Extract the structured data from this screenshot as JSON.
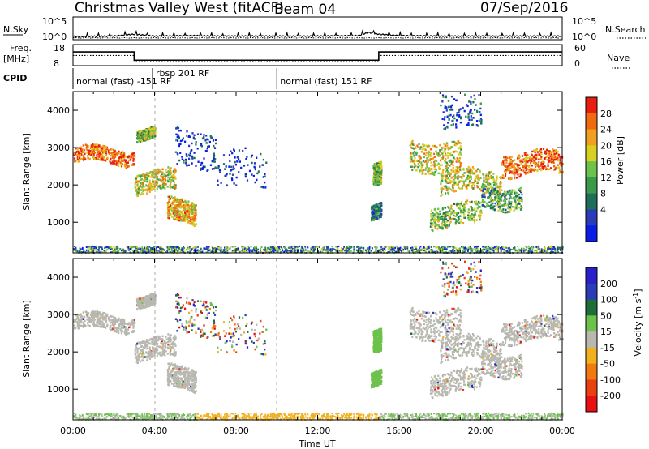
{
  "header": {
    "site_title": "Christmas Valley West (fitACF)",
    "beam": "Beam 04",
    "date": "07/Sep/2016"
  },
  "labels": {
    "nsky": "N.Sky",
    "nsky_ticks": [
      "10^5",
      "10^0"
    ],
    "nsearch": "N.Search",
    "nsearch_ticks": [
      "10^5",
      "10^0"
    ],
    "freq": "Freq.",
    "freq_unit": "[MHz]",
    "freq_ticks": [
      "18",
      "8"
    ],
    "nave": "Nave",
    "nave_ticks": [
      "60",
      "0"
    ],
    "cpid": "CPID"
  },
  "cpid_segments": [
    {
      "label": "normal (fast)  -151 RF",
      "start_hour": 0.0
    },
    {
      "label": "rbsp 201 RF",
      "start_hour": 3.9
    },
    {
      "label": "normal (fast) 151 RF",
      "start_hour": 10.0
    }
  ],
  "colors": {
    "power": [
      "#0a1ee6",
      "#2a3cb8",
      "#1e6e5a",
      "#3a9a4a",
      "#6cc24a",
      "#d8d020",
      "#f0a020",
      "#f06a10",
      "#e81e10"
    ],
    "velocity": [
      "#2a20c8",
      "#2a3cb8",
      "#1e6e3a",
      "#6cc24a",
      "#b8b8b0",
      "#f0b020",
      "#f07a10",
      "#e84010",
      "#e81010"
    ]
  },
  "chart_data": [
    {
      "type": "line",
      "panel": "N.Sky / N.Search",
      "x_hours": [
        0,
        2,
        3,
        4,
        6,
        7,
        8,
        10,
        12,
        14,
        14.5,
        15,
        16,
        18,
        20,
        22,
        24
      ],
      "y_log10": [
        0.7,
        0.8,
        1.2,
        0.8,
        0.9,
        0.8,
        0.8,
        0.8,
        0.8,
        0.9,
        1.6,
        1.2,
        0.9,
        0.8,
        0.8,
        0.8,
        0.8
      ],
      "ylim": [
        0,
        5
      ]
    },
    {
      "type": "line",
      "panel": "Freq. / Nave",
      "freq_segments": [
        {
          "x": [
            0,
            3
          ],
          "y": 14.5
        },
        {
          "x": [
            3,
            15
          ],
          "y": 10.6
        },
        {
          "x": [
            15,
            24
          ],
          "y": 14.5
        }
      ],
      "nave_segments": [
        {
          "x": [
            0,
            3
          ],
          "y": 29
        },
        {
          "x": [
            3,
            15
          ],
          "y": 14
        },
        {
          "x": [
            15,
            24
          ],
          "y": 29
        }
      ],
      "freq_lim": [
        8,
        18
      ],
      "nave_lim": [
        0,
        60
      ]
    },
    {
      "type": "heatmap",
      "panel": "Power",
      "ylabel": "Slant Range [km]",
      "colorbar_label": "Power [dB]",
      "colorbar_ticks": [
        4,
        8,
        12,
        16,
        20,
        24,
        28
      ],
      "x_ticks": [
        "00:00",
        "04:00",
        "08:00",
        "12:00",
        "16:00",
        "20:00",
        "00:00"
      ],
      "y_ticks": [
        1000,
        2000,
        3000,
        4000
      ],
      "xlim_hours": [
        0,
        24
      ],
      "ylim_km": [
        180,
        4500
      ]
    },
    {
      "type": "heatmap",
      "panel": "Velocity",
      "ylabel": "Slant Range [km]",
      "xlabel": "Time UT",
      "colorbar_label": "Velocity [m s-1]",
      "colorbar_ticks": [
        200,
        100,
        50,
        15,
        -15,
        -50,
        -100,
        -200
      ],
      "x_ticks": [
        "00:00",
        "04:00",
        "08:00",
        "12:00",
        "16:00",
        "20:00",
        "00:00"
      ],
      "y_ticks": [
        1000,
        2000,
        3000,
        4000
      ],
      "xlim_hours": [
        0,
        24
      ],
      "ylim_km": [
        180,
        4500
      ]
    }
  ]
}
